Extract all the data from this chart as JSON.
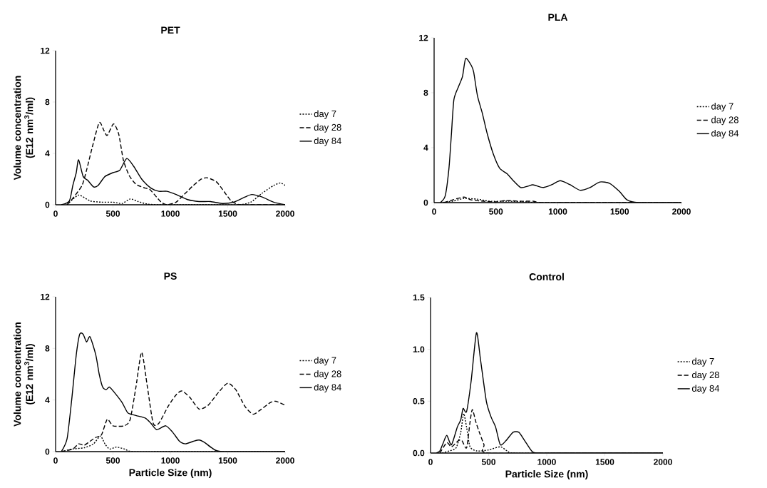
{
  "chart_data": [
    {
      "type": "line",
      "title": "PET",
      "ylabel": "Volume concentration (E12 nm$^{3}$/ml)",
      "xlim": [
        0,
        2000
      ],
      "ylim": [
        0,
        12
      ],
      "xticks": [
        0,
        500,
        1000,
        1500,
        2000
      ],
      "yticks": [
        0,
        4,
        8,
        12
      ],
      "legend": "right",
      "series": [
        {
          "name": "day 7",
          "color": "#000000",
          "line_style": "dotted",
          "x": [
            100,
            200,
            300,
            400,
            500,
            580,
            650,
            720,
            800,
            900,
            1000,
            1200,
            1400,
            1600,
            1700,
            1800,
            1900,
            1960,
            2000
          ],
          "values": [
            0,
            0.75,
            0.3,
            0.2,
            0.2,
            0.1,
            0.45,
            0.25,
            0.05,
            0,
            0,
            0,
            0,
            0,
            0.2,
            0.9,
            1.5,
            1.7,
            1.5
          ]
        },
        {
          "name": "day 28",
          "color": "#000000",
          "line_style": "dashed",
          "x": [
            100,
            150,
            230,
            270,
            320,
            380,
            420,
            450,
            505,
            550,
            590,
            640,
            700,
            780,
            820,
            870,
            920,
            970,
            1050,
            1120,
            1200,
            1270,
            1320,
            1400,
            1470,
            1530,
            1600,
            1700,
            1800,
            1900,
            2000
          ],
          "values": [
            0,
            0.5,
            1.5,
            2.7,
            4.5,
            6.4,
            5.8,
            5.4,
            6.3,
            5.5,
            3.5,
            2.3,
            1.6,
            1.3,
            1.2,
            0.7,
            0.2,
            0,
            0.2,
            0.8,
            1.5,
            2.0,
            2.1,
            1.8,
            1.0,
            0.3,
            0,
            0,
            0,
            0,
            0
          ]
        },
        {
          "name": "day 84",
          "color": "#000000",
          "line_style": "solid",
          "x": [
            50,
            120,
            150,
            180,
            200,
            240,
            280,
            330,
            370,
            430,
            500,
            560,
            620,
            680,
            750,
            830,
            900,
            970,
            1050,
            1150,
            1250,
            1350,
            1450,
            1550,
            1650,
            1710,
            1800,
            1900,
            2000
          ],
          "values": [
            0,
            0.3,
            1.5,
            2.5,
            3.5,
            2.2,
            1.9,
            1.4,
            1.5,
            2.2,
            2.5,
            2.7,
            3.6,
            3.0,
            2.0,
            1.3,
            1.05,
            1.05,
            0.8,
            0.4,
            0.25,
            0.25,
            0.1,
            0.2,
            0.6,
            0.8,
            0.6,
            0.2,
            0
          ]
        }
      ]
    },
    {
      "type": "line",
      "title": "PLA",
      "xlim": [
        0,
        2000
      ],
      "ylim": [
        0,
        12
      ],
      "xticks": [
        0,
        500,
        1000,
        1500,
        2000
      ],
      "yticks": [
        0,
        4,
        8,
        12
      ],
      "legend": "right",
      "series": [
        {
          "name": "day 7",
          "color": "#000000",
          "line_style": "dotted",
          "x": [
            50,
            150,
            240,
            350,
            450,
            600,
            750,
            850,
            1200,
            2000
          ],
          "values": [
            0,
            0.1,
            0.3,
            0.25,
            0.1,
            0.1,
            0.05,
            0,
            0,
            0
          ]
        },
        {
          "name": "day 28",
          "color": "#000000",
          "line_style": "dashed",
          "x": [
            80,
            150,
            240,
            300,
            400,
            500,
            580,
            700,
            800,
            870,
            1200,
            2000
          ],
          "values": [
            0,
            0.2,
            0.4,
            0.2,
            0.1,
            0.05,
            0.15,
            0.1,
            0.1,
            0,
            0,
            0
          ]
        },
        {
          "name": "day 84",
          "color": "#000000",
          "line_style": "solid",
          "x": [
            50,
            90,
            120,
            140,
            160,
            200,
            230,
            255,
            300,
            320,
            350,
            390,
            430,
            480,
            530,
            590,
            640,
            700,
            760,
            800,
            880,
            950,
            1020,
            1100,
            1180,
            1260,
            1340,
            1420,
            1500,
            1560,
            1650,
            2000
          ],
          "values": [
            0,
            0.5,
            2.5,
            5,
            7.5,
            8.5,
            9.2,
            10.5,
            10.0,
            9.5,
            7.8,
            6.5,
            5.0,
            3.5,
            2.5,
            2.1,
            1.6,
            1.1,
            1.2,
            1.3,
            1.1,
            1.3,
            1.6,
            1.3,
            0.9,
            1.1,
            1.5,
            1.4,
            0.8,
            0.2,
            0,
            0
          ]
        }
      ]
    },
    {
      "type": "line",
      "title": "PS",
      "xlabel": "Particle Size (nm)",
      "ylabel": "Volume concentration (E12 nm$^{3}$/ml)",
      "xlim": [
        0,
        2000
      ],
      "ylim": [
        0,
        12
      ],
      "xticks": [
        0,
        500,
        1000,
        1500,
        2000
      ],
      "yticks": [
        0,
        4,
        8,
        12
      ],
      "legend": "right",
      "series": [
        {
          "name": "day 7",
          "color": "#000000",
          "line_style": "dotted",
          "x": [
            50,
            150,
            250,
            330,
            390,
            430,
            470,
            530,
            600,
            670,
            1000,
            2000
          ],
          "values": [
            0,
            0.2,
            0.3,
            0.6,
            1.2,
            0.6,
            0.2,
            0.35,
            0.2,
            0,
            0,
            0
          ]
        },
        {
          "name": "day 28",
          "color": "#000000",
          "line_style": "dashed",
          "x": [
            50,
            150,
            200,
            250,
            300,
            350,
            400,
            450,
            500,
            600,
            650,
            700,
            750,
            800,
            850,
            900,
            980,
            1050,
            1100,
            1170,
            1250,
            1330,
            1420,
            1500,
            1570,
            1650,
            1720,
            1780,
            1870,
            1920,
            2000
          ],
          "values": [
            0,
            0.2,
            0.6,
            0.5,
            0.8,
            1.1,
            1.3,
            2.5,
            2.0,
            2.0,
            2.5,
            5.0,
            7.7,
            5.0,
            2.2,
            2.2,
            3.5,
            4.4,
            4.7,
            4.2,
            3.3,
            3.6,
            4.6,
            5.3,
            4.8,
            3.5,
            2.9,
            3.2,
            3.8,
            3.9,
            3.6
          ]
        },
        {
          "name": "day 84",
          "color": "#000000",
          "line_style": "solid",
          "x": [
            50,
            100,
            140,
            180,
            210,
            240,
            270,
            300,
            350,
            380,
            410,
            440,
            470,
            520,
            580,
            630,
            700,
            780,
            830,
            880,
            960,
            1020,
            1080,
            1130,
            1200,
            1250,
            1300,
            1360,
            1450,
            2000
          ],
          "values": [
            0,
            1,
            4,
            7.5,
            9.1,
            9.1,
            8.5,
            8.9,
            7.5,
            6,
            5,
            4.8,
            5.0,
            4.5,
            3.8,
            3.0,
            2.8,
            2.6,
            2.2,
            1.7,
            2.0,
            1.5,
            0.8,
            0.6,
            0.8,
            0.9,
            0.7,
            0.3,
            0,
            0
          ]
        }
      ]
    },
    {
      "type": "line",
      "title": "Control",
      "xlabel": "Particle Size (nm)",
      "xlim": [
        0,
        2000
      ],
      "ylim": [
        0,
        1.5
      ],
      "xticks": [
        0,
        500,
        1000,
        1500,
        2000
      ],
      "yticks": [
        {
          "value": 0,
          "label": "0.0"
        },
        0.5,
        {
          "value": 1,
          "label": "1.0"
        },
        1.5
      ],
      "legend": "right",
      "series": [
        {
          "name": "day 7",
          "color": "#000000",
          "line_style": "dotted",
          "x": [
            100,
            160,
            220,
            260,
            285,
            310,
            340,
            400,
            500,
            600,
            660,
            720,
            1200,
            2000
          ],
          "values": [
            0,
            0.02,
            0.05,
            0.2,
            0.38,
            0.25,
            0.06,
            0.02,
            0.03,
            0.06,
            0.02,
            0,
            0,
            0
          ]
        },
        {
          "name": "day 28",
          "color": "#000000",
          "line_style": "dashed",
          "x": [
            80,
            140,
            180,
            240,
            270,
            310,
            340,
            360,
            390,
            420,
            460,
            490,
            1200,
            2000
          ],
          "values": [
            0,
            0.1,
            0.06,
            0.12,
            0.12,
            0.05,
            0.3,
            0.42,
            0.3,
            0.2,
            0.08,
            0,
            0,
            0
          ]
        },
        {
          "name": "day 84",
          "color": "#000000",
          "line_style": "solid",
          "x": [
            50,
            80,
            110,
            140,
            180,
            230,
            260,
            280,
            310,
            350,
            395,
            430,
            480,
            520,
            560,
            600,
            650,
            710,
            760,
            810,
            870,
            920,
            1200,
            2000
          ],
          "values": [
            0,
            0.02,
            0.1,
            0.17,
            0.08,
            0.25,
            0.32,
            0.43,
            0.4,
            0.7,
            1.16,
            0.9,
            0.5,
            0.35,
            0.25,
            0.08,
            0.12,
            0.2,
            0.2,
            0.12,
            0.02,
            0,
            0,
            0
          ]
        }
      ]
    }
  ]
}
